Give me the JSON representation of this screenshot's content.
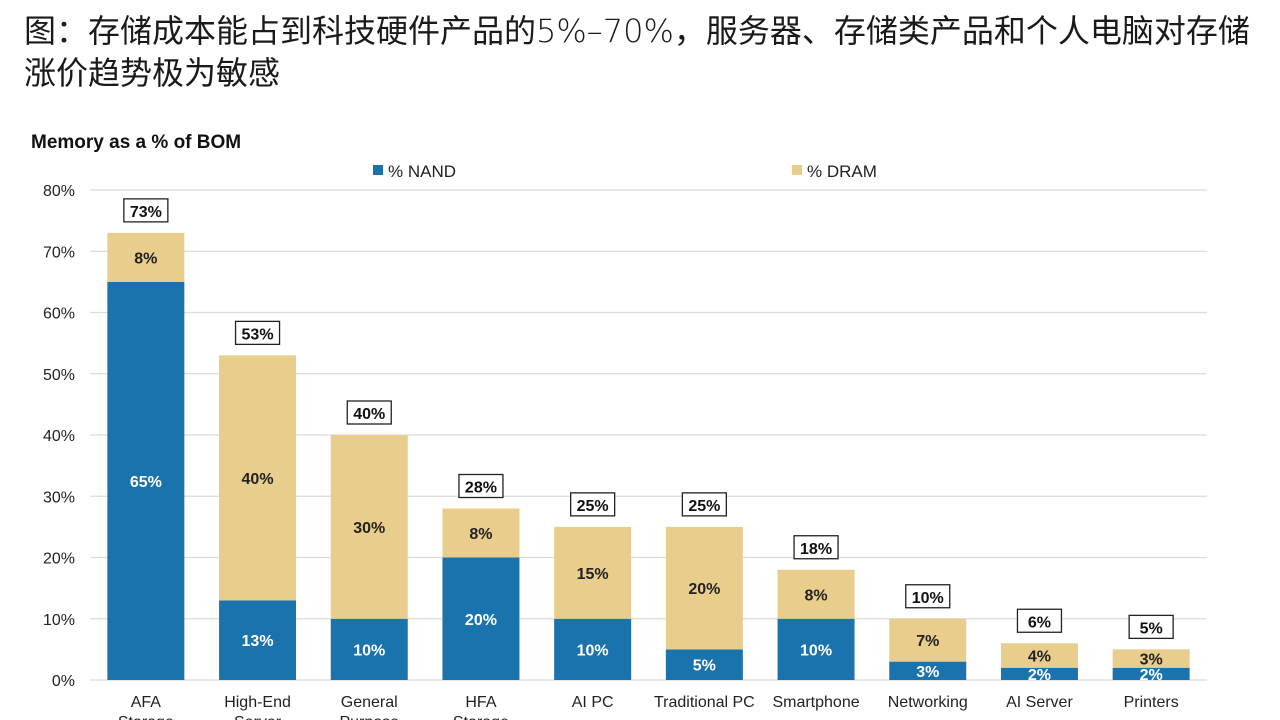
{
  "header": {
    "title": "图：存储成本能占到科技硬件产品的5%–70%，服务器、存储类产品和个人电脑对存储涨价趋势极为敏感"
  },
  "chart_data": {
    "type": "bar",
    "stacked": true,
    "title": "Memory as a % of BOM",
    "xlabel": "",
    "ylabel": "",
    "ylim": [
      0,
      80
    ],
    "yticks": [
      "0%",
      "10%",
      "20%",
      "30%",
      "40%",
      "50%",
      "60%",
      "70%",
      "80%"
    ],
    "grid": true,
    "legend_position": "top",
    "categories": [
      "AFA Storage",
      "High-End Server",
      "General Purpose",
      "HFA Storage",
      "AI PC",
      "Traditional PC",
      "Smartphone",
      "Networking",
      "AI Server",
      "Printers"
    ],
    "series": [
      {
        "name": "% NAND",
        "color": "#1b73ad",
        "values": [
          65,
          13,
          10,
          20,
          10,
          5,
          10,
          3,
          2,
          2
        ]
      },
      {
        "name": "% DRAM",
        "color": "#e9cd8c",
        "values": [
          8,
          40,
          30,
          8,
          15,
          20,
          8,
          7,
          4,
          3
        ]
      }
    ],
    "totals": [
      73,
      53,
      40,
      28,
      25,
      25,
      18,
      10,
      6,
      5
    ]
  }
}
